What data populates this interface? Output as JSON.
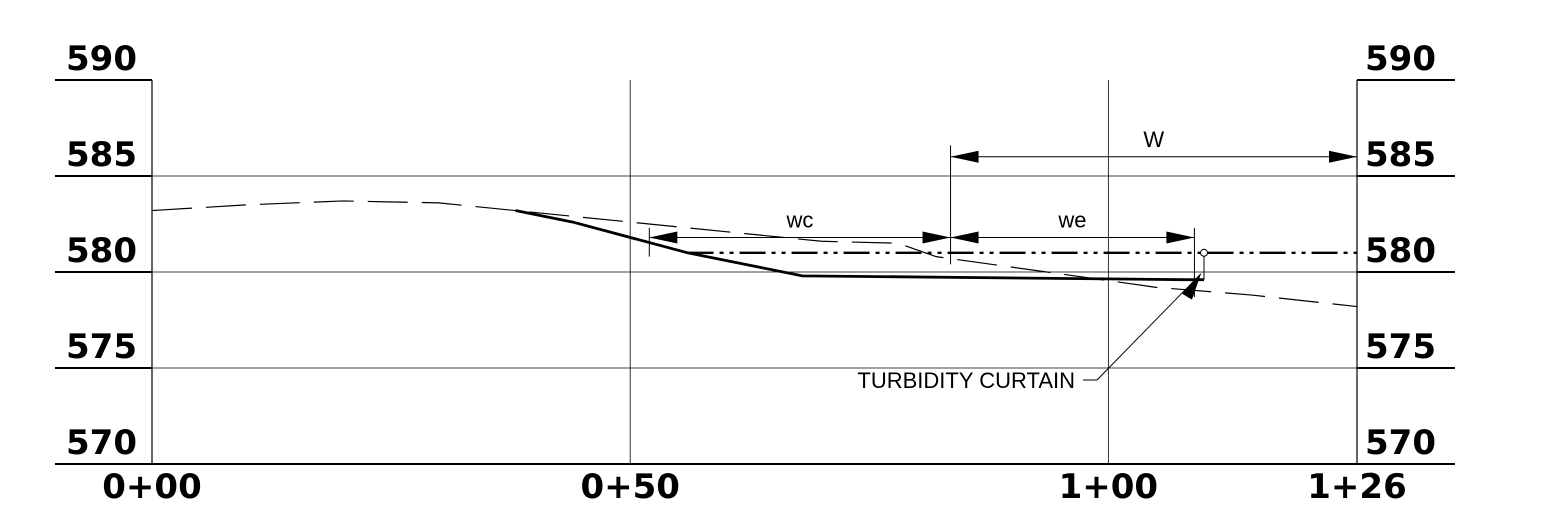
{
  "chart_data": {
    "type": "line",
    "y_ticks": [
      "590",
      "585",
      "580",
      "575",
      "570"
    ],
    "x_ticks": [
      "0+00",
      "0+50",
      "1+00",
      "1+26"
    ],
    "xlim": [
      0,
      126
    ],
    "ylim": [
      570,
      590
    ],
    "grid": true,
    "series": [
      {
        "style": "dashed",
        "x": [
          0,
          10,
          20,
          30,
          38,
          50,
          60,
          70,
          78,
          82,
          95,
          105,
          115,
          126
        ],
        "y": [
          583.2,
          583.5,
          583.7,
          583.6,
          583.2,
          582.6,
          582.1,
          581.6,
          581.5,
          580.8,
          579.9,
          579.2,
          578.8,
          578.2
        ]
      },
      {
        "style": "solid",
        "x": [
          38,
          44,
          56,
          68,
          108,
          110
        ],
        "y": [
          583.2,
          582.6,
          581.0,
          579.8,
          579.6,
          579.6
        ]
      },
      {
        "style": "dash-dot",
        "x": [
          56,
          126
        ],
        "y": [
          581.0,
          581.0
        ]
      }
    ],
    "dimensions": [
      {
        "label": "W",
        "from": 83.5,
        "to": 126
      },
      {
        "label": "wc",
        "from": 52,
        "to": 83.5
      },
      {
        "label": "we",
        "from": 83.5,
        "to": 109
      }
    ],
    "annotation": "TURBIDITY CURTAIN"
  }
}
